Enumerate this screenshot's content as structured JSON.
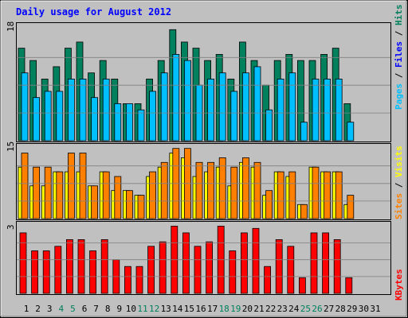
{
  "chart_data": {
    "type": "bar",
    "title": "Daily usage for August 2012",
    "days": [
      "1",
      "2",
      "3",
      "4",
      "5",
      "6",
      "7",
      "8",
      "9",
      "10",
      "11",
      "12",
      "13",
      "14",
      "15",
      "16",
      "17",
      "18",
      "19",
      "20",
      "21",
      "22",
      "23",
      "24",
      "25",
      "26",
      "27",
      "28",
      "29",
      "30",
      "31"
    ],
    "weekend_days": [
      "4",
      "5",
      "11",
      "12",
      "18",
      "19",
      "25",
      "26"
    ],
    "panels": [
      {
        "id": "hits_files_pages",
        "ymax_label": "18",
        "ymax": 18,
        "legend": [
          "Pages",
          "Files",
          "Hits"
        ],
        "series": [
          {
            "name": "Hits",
            "color": "#00805c",
            "values": [
              15,
              13,
              10,
              12,
              15,
              16,
              11,
              13,
              10,
              6,
              6,
              10,
              13,
              18,
              16,
              15,
              13,
              14,
              10,
              16,
              13,
              9,
              13,
              14,
              13,
              13,
              14,
              15,
              6,
              0,
              0
            ]
          },
          {
            "name": "Files",
            "color": "#00bfff",
            "values": [
              11,
              7,
              8,
              8,
              10,
              10,
              7,
              10,
              6,
              6,
              5,
              8,
              11,
              14,
              13,
              9,
              10,
              11,
              8,
              11,
              12,
              5,
              10,
              11,
              3,
              10,
              10,
              10,
              3,
              0,
              0
            ]
          },
          {
            "name": "Pages",
            "color": "#00bfff",
            "values": [
              0,
              0,
              0,
              0,
              0,
              0,
              0,
              0,
              0,
              0,
              0,
              0,
              0,
              0,
              0,
              0,
              0,
              0,
              0,
              0,
              0,
              0,
              0,
              0,
              0,
              0,
              0,
              0,
              0,
              0,
              0
            ]
          }
        ]
      },
      {
        "id": "visits_sites",
        "ymax_label": "15",
        "ymax": 15,
        "legend": [
          "Sites",
          "Visits"
        ],
        "series": [
          {
            "name": "Visits",
            "color": "#ff8000",
            "values": [
              14,
              11,
              11,
              10,
              14,
              14,
              7,
              10,
              9,
              6,
              5,
              10,
              12,
              15,
              15,
              12,
              12,
              13,
              11,
              13,
              12,
              6,
              10,
              10,
              3,
              11,
              10,
              10,
              5,
              0,
              0
            ]
          },
          {
            "name": "Sites",
            "color": "#ffff00",
            "values": [
              11,
              7,
              7,
              10,
              10,
              10,
              7,
              10,
              6,
              6,
              5,
              9,
              11,
              14,
              13,
              9,
              10,
              11,
              7,
              12,
              11,
              5,
              10,
              9,
              3,
              11,
              10,
              10,
              3,
              0,
              0
            ]
          }
        ]
      },
      {
        "id": "kbytes",
        "ymax_label": "3",
        "ymax": 3,
        "legend": [
          "KBytes"
        ],
        "series": [
          {
            "name": "KBytes",
            "color": "#ff0000",
            "values": [
              2.7,
              1.9,
              1.9,
              2.1,
              2.4,
              2.4,
              1.9,
              2.4,
              1.5,
              1.2,
              1.2,
              2.1,
              2.3,
              3.0,
              2.7,
              2.1,
              2.3,
              3.0,
              1.9,
              2.7,
              2.9,
              1.2,
              2.4,
              2.1,
              0.7,
              2.7,
              2.7,
              2.4,
              0.7,
              0,
              0
            ]
          }
        ]
      }
    ],
    "colors": {
      "background": "#c0c0c0",
      "title": "#0000ff",
      "pages_label": "#00bfff",
      "files_label": "#0000ff",
      "hits_label": "#00805c",
      "sites_label": "#ff8000",
      "visits_label": "#ffff00",
      "kbytes_label": "#ff0000",
      "day_label": "#000000",
      "weekend_label": "#00805c"
    }
  }
}
